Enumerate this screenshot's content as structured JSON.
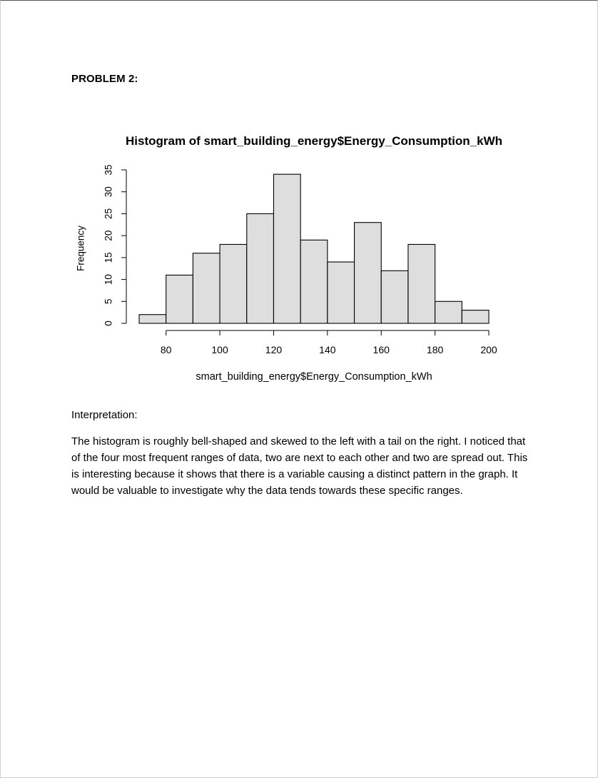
{
  "document": {
    "problem_heading": "PROBLEM 2:",
    "interpretation_label": "Interpretation:",
    "interpretation_text": "The histogram is roughly bell-shaped and skewed to the left with a tail on the right. I noticed that of the four most frequent ranges of data, two are next to each other and two are spread out. This is interesting because it shows that there is a variable causing a distinct pattern in the graph. It would be valuable to investigate why the data tends towards these specific ranges."
  },
  "chart_data": {
    "type": "bar",
    "title": "Histogram of smart_building_energy$Energy_Consumption_kWh",
    "xlabel": "smart_building_energy$Energy_Consumption_kWh",
    "ylabel": "Frequency",
    "bin_edges": [
      70,
      80,
      90,
      100,
      110,
      120,
      130,
      140,
      150,
      160,
      170,
      180,
      190,
      200
    ],
    "values": [
      2,
      11,
      16,
      18,
      25,
      34,
      19,
      14,
      23,
      12,
      18,
      5,
      3
    ],
    "xticks": [
      80,
      100,
      120,
      140,
      160,
      180,
      200
    ],
    "yticks": [
      0,
      5,
      10,
      15,
      20,
      25,
      30,
      35
    ],
    "xlim": [
      70,
      200
    ],
    "ylim": [
      0,
      35
    ],
    "grid": false,
    "legend": "none",
    "bar_fill": "#dedede",
    "bar_stroke": "#000000"
  }
}
